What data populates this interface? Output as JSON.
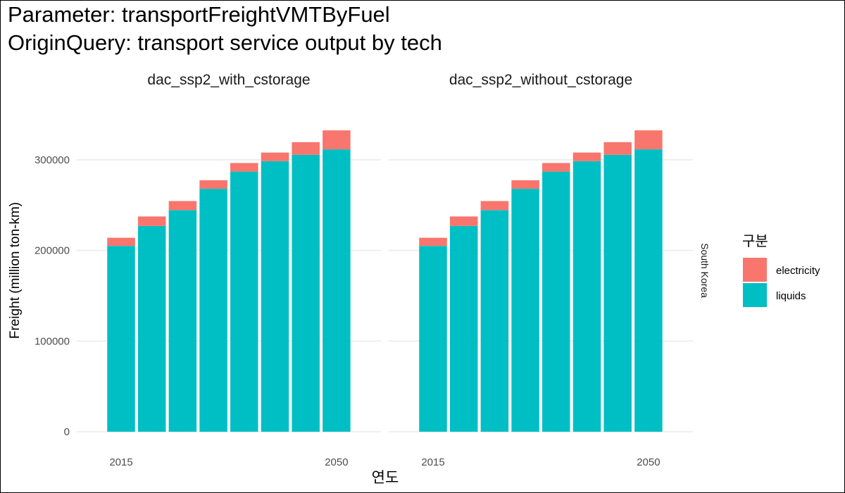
{
  "chart_data": {
    "type": "bar",
    "stacked": true,
    "title": "Parameter: transportFreightVMTByFuel",
    "subtitle": "OriginQuery: transport service output by tech",
    "xlabel": "연도",
    "ylabel": "Freight (million ton-km)",
    "strip_label": "South Korea",
    "legend": {
      "title": "구분",
      "position": "right",
      "entries": [
        {
          "key": "electricity",
          "label": "electricity",
          "color": "#F8766D"
        },
        {
          "key": "liquids",
          "label": "liquids",
          "color": "#00BFC4"
        }
      ]
    },
    "categories": [
      2015,
      2020,
      2025,
      2030,
      2035,
      2040,
      2045,
      2050
    ],
    "x_tick_labels": [
      {
        "value": 2015,
        "label": "2015"
      },
      {
        "value": 2050,
        "label": "2050"
      }
    ],
    "y_ticks": [
      {
        "value": 0,
        "label": "0"
      },
      {
        "value": 100000,
        "label": "100000"
      },
      {
        "value": 200000,
        "label": "200000"
      },
      {
        "value": 300000,
        "label": "300000"
      }
    ],
    "ylim": [
      0,
      345000
    ],
    "grid": true,
    "panels": [
      {
        "facet": "dac_ssp2_with_cstorage",
        "series": [
          {
            "name": "liquids",
            "values": [
              205000,
              227000,
              244500,
              268000,
              287000,
              298500,
              305500,
              311500
            ]
          },
          {
            "name": "electricity",
            "values": [
              9000,
              10500,
              10000,
              9500,
              9500,
              9500,
              14000,
              21000
            ]
          }
        ]
      },
      {
        "facet": "dac_ssp2_without_cstorage",
        "series": [
          {
            "name": "liquids",
            "values": [
              205000,
              227000,
              244500,
              268000,
              287000,
              298500,
              305500,
              311500
            ]
          },
          {
            "name": "electricity",
            "values": [
              9000,
              10500,
              10000,
              9500,
              9500,
              9500,
              14000,
              21000
            ]
          }
        ]
      }
    ]
  }
}
